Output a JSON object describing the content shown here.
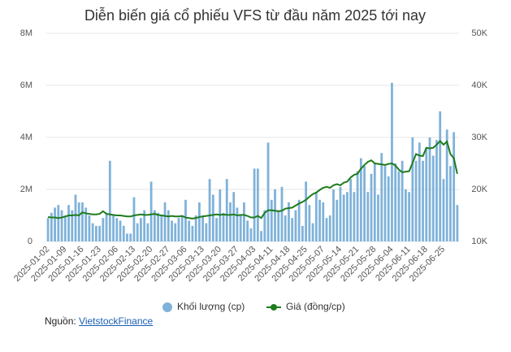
{
  "chart_data": {
    "type": "bar-line",
    "title": "Diễn biến giá cổ phiếu VFS từ đầu năm 2025 tới nay",
    "categories": [
      "2025-01-02",
      null,
      null,
      null,
      null,
      "2025-01-09",
      null,
      null,
      null,
      null,
      "2025-01-16",
      null,
      null,
      null,
      null,
      "2025-01-23",
      null,
      null,
      null,
      null,
      "2025-02-06",
      null,
      null,
      null,
      null,
      "2025-02-13",
      null,
      null,
      null,
      null,
      "2025-02-20",
      null,
      null,
      null,
      null,
      "2025-02-27",
      null,
      null,
      null,
      null,
      "2025-03-06",
      null,
      null,
      null,
      null,
      "2025-03-13",
      null,
      null,
      null,
      null,
      "2025-03-20",
      null,
      null,
      null,
      null,
      "2025-03-27",
      null,
      null,
      null,
      null,
      "2025-04-03",
      null,
      null,
      null,
      null,
      "2025-04-11",
      null,
      null,
      null,
      null,
      "2025-04-18",
      null,
      null,
      null,
      null,
      "2025-04-25",
      null,
      null,
      null,
      null,
      "2025-05-07",
      null,
      null,
      null,
      null,
      "2025-05-14",
      null,
      null,
      null,
      null,
      "2025-05-21",
      null,
      null,
      null,
      null,
      "2025-05-28",
      null,
      null,
      null,
      null,
      "2025-06-04",
      null,
      null,
      null,
      null,
      "2025-06-11",
      null,
      null,
      null,
      null,
      "2025-06-18",
      null,
      null,
      null,
      null,
      "2025-06-25",
      null,
      null,
      null,
      null
    ],
    "series": [
      {
        "name": "Khối lượng (cp)",
        "color": "#7fb2d9",
        "values": [
          900000,
          1100000,
          1300000,
          1400000,
          1200000,
          1000000,
          1400000,
          1200000,
          1800000,
          1500000,
          1500000,
          1300000,
          1000000,
          700000,
          600000,
          600000,
          900000,
          1100000,
          3100000,
          1000000,
          900000,
          800000,
          600000,
          300000,
          300000,
          1700000,
          700000,
          900000,
          1200000,
          700000,
          2300000,
          1200000,
          1100000,
          1000000,
          1500000,
          1200000,
          800000,
          700000,
          900000,
          1000000,
          1600000,
          800000,
          600000,
          1000000,
          1500000,
          1000000,
          700000,
          2400000,
          1800000,
          900000,
          2000000,
          1100000,
          2400000,
          1500000,
          1900000,
          1300000,
          1000000,
          1500000,
          800000,
          500000,
          2800000,
          2800000,
          400000,
          1200000,
          3800000,
          1600000,
          2000000,
          1200000,
          2100000,
          1000000,
          1500000,
          900000,
          1200000,
          1600000,
          600000,
          2300000,
          1400000,
          700000,
          1900000,
          1600000,
          1500000,
          900000,
          1000000,
          2000000,
          1600000,
          2100000,
          1800000,
          1900000,
          2400000,
          1900000,
          2700000,
          3200000,
          2900000,
          1900000,
          2600000,
          3000000,
          1800000,
          3400000,
          2900000,
          2500000,
          6100000,
          3000000,
          2700000,
          3100000,
          2000000,
          1900000,
          4000000,
          3100000,
          3800000,
          3100000,
          3600000,
          4000000,
          3300000,
          3900000,
          5000000,
          2400000,
          4300000,
          2900000,
          4200000,
          1400000
        ]
      },
      {
        "name": "Giá (đồng/cp)",
        "color": "#1e7b1e",
        "axis": "y2",
        "values": [
          14700,
          14600,
          14600,
          14500,
          14600,
          14800,
          15000,
          15000,
          15100,
          15000,
          15600,
          15400,
          15300,
          15200,
          15200,
          15300,
          15800,
          15300,
          15200,
          15100,
          15000,
          15000,
          14900,
          14800,
          14800,
          15000,
          15100,
          15200,
          15100,
          15100,
          15200,
          15300,
          15100,
          15000,
          14900,
          14800,
          14900,
          14800,
          14800,
          14900,
          14600,
          14500,
          14400,
          14500,
          14700,
          14800,
          14900,
          15000,
          15100,
          15200,
          15100,
          15200,
          15100,
          15100,
          15200,
          15000,
          15100,
          15100,
          14900,
          14600,
          14600,
          14900,
          14500,
          15500,
          16000,
          16000,
          15900,
          15800,
          15900,
          16300,
          16400,
          16500,
          16900,
          17300,
          17600,
          18000,
          18600,
          19100,
          19400,
          19900,
          20300,
          20500,
          20300,
          20800,
          21000,
          20800,
          21300,
          21500,
          22300,
          22800,
          23000,
          24000,
          24700,
          25300,
          25600,
          25000,
          24900,
          24800,
          24700,
          24900,
          25000,
          24600,
          23800,
          23300,
          23400,
          23500,
          25100,
          26800,
          26500,
          26400,
          28000,
          27900,
          28000,
          28600,
          29300,
          28600,
          29200,
          26800,
          26000,
          23000
        ]
      }
    ],
    "ylim": [
      0,
      8000000
    ],
    "yticks": [
      0,
      {
        "value": 2000000,
        "label": "2M"
      },
      {
        "value": 4000000,
        "label": "4M"
      },
      {
        "value": 6000000,
        "label": "6M"
      },
      {
        "value": 8000000,
        "label": "8M"
      }
    ],
    "y2lim": [
      10000,
      50000
    ],
    "y2ticks": [
      {
        "value": 10000,
        "label": "10K"
      },
      {
        "value": 20000,
        "label": "20K"
      },
      {
        "value": 30000,
        "label": "30K"
      },
      {
        "value": 40000,
        "label": "40K"
      },
      {
        "value": 50000,
        "label": "50K"
      }
    ],
    "grid": true
  },
  "source": {
    "label": "Nguồn:",
    "link": "VietstockFinance"
  }
}
